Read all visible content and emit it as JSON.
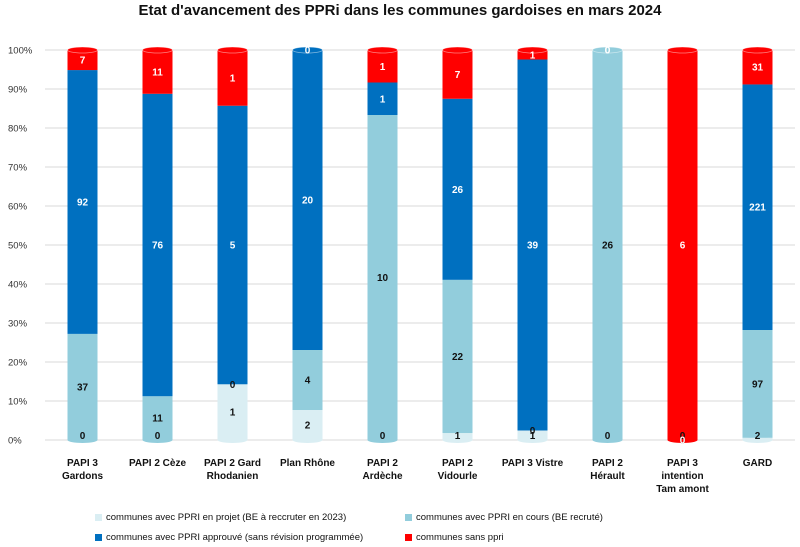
{
  "chart_data": {
    "type": "bar",
    "stacked": "percent",
    "title": "Etat d'avancement des PPRi dans les communes gardoises en mars 2024",
    "categories": [
      [
        "PAPI 3",
        "Gardons"
      ],
      [
        "PAPI 2 Cèze"
      ],
      [
        "PAPI 2 Gard",
        "Rhodanien"
      ],
      [
        "Plan Rhône"
      ],
      [
        "PAPI 2",
        "Ardèche"
      ],
      [
        "PAPI 2",
        "Vidourle"
      ],
      [
        "PAPI 3 Vistre"
      ],
      [
        "PAPI 2",
        "Hérault"
      ],
      [
        "PAPI 3",
        "intention",
        "Tam amont"
      ],
      [
        "GARD"
      ]
    ],
    "series": [
      {
        "name": "communes avec PPRI en projet (BE à reccruter en 2023)",
        "color": "#daeef3",
        "values": [
          0,
          0,
          1,
          2,
          0,
          1,
          1,
          0,
          0,
          2
        ]
      },
      {
        "name": "communes avec PPRI en cours (BE recruté)",
        "color": "#92cddc",
        "values": [
          37,
          11,
          0,
          4,
          10,
          22,
          0,
          26,
          0,
          97
        ]
      },
      {
        "name": "communes avec PPRI approuvé (sans révision programmée)",
        "color": "#0070c0",
        "values": [
          92,
          76,
          5,
          20,
          1,
          26,
          39,
          0,
          0,
          221
        ]
      },
      {
        "name": "communes sans ppri",
        "color": "#ff0000",
        "values": [
          7,
          11,
          1,
          0,
          1,
          7,
          1,
          0,
          6,
          31
        ]
      }
    ],
    "ylim": [
      0,
      100
    ],
    "yticks": [
      "0%",
      "10%",
      "20%",
      "30%",
      "40%",
      "50%",
      "60%",
      "70%",
      "80%",
      "90%",
      "100%"
    ],
    "grid": true,
    "legend_position": "bottom"
  }
}
